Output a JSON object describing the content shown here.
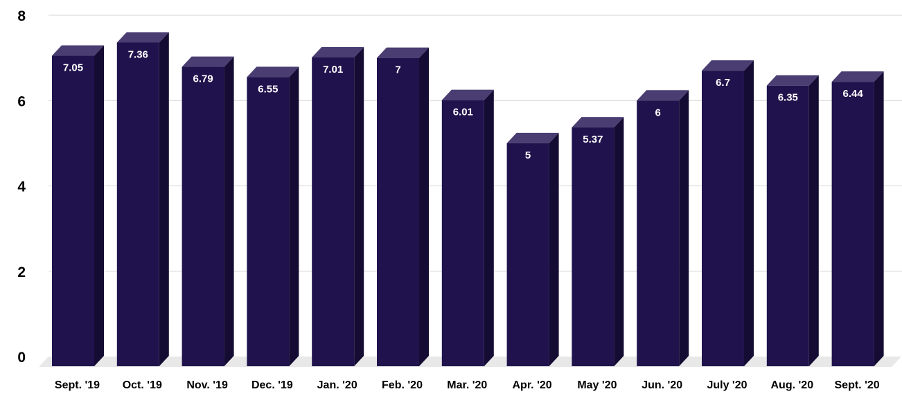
{
  "chart_data": {
    "type": "bar",
    "categories": [
      "Sept. '19",
      "Oct. '19",
      "Nov. '19",
      "Dec. '19",
      "Jan. '20",
      "Feb. '20",
      "Mar. '20",
      "Apr. '20",
      "May '20",
      "Jun. '20",
      "July '20",
      "Aug. '20",
      "Sept. '20"
    ],
    "series": [
      {
        "values": [
          7.05,
          7.36,
          6.79,
          6.55,
          7.01,
          7,
          6.01,
          5,
          5.37,
          6,
          6.7,
          6.35,
          6.44
        ]
      }
    ],
    "data_labels": [
      "7.05",
      "7.36",
      "6.79",
      "6.55",
      "7.01",
      "7",
      "6.01",
      "5",
      "5.37",
      "6",
      "6.7",
      "6.35",
      "6.44"
    ],
    "yticks": [
      "0",
      "2",
      "4",
      "6",
      "8"
    ],
    "ylim": [
      0,
      8
    ],
    "grid": true,
    "legend": "none",
    "title": "",
    "xlabel": "",
    "ylabel": "",
    "colors": {
      "bar_front": "#20134d",
      "bar_side": "#150c33",
      "bar_top": "#4a3d72",
      "floor": "#e8e8e8",
      "grid": "#d4d4d4"
    }
  }
}
